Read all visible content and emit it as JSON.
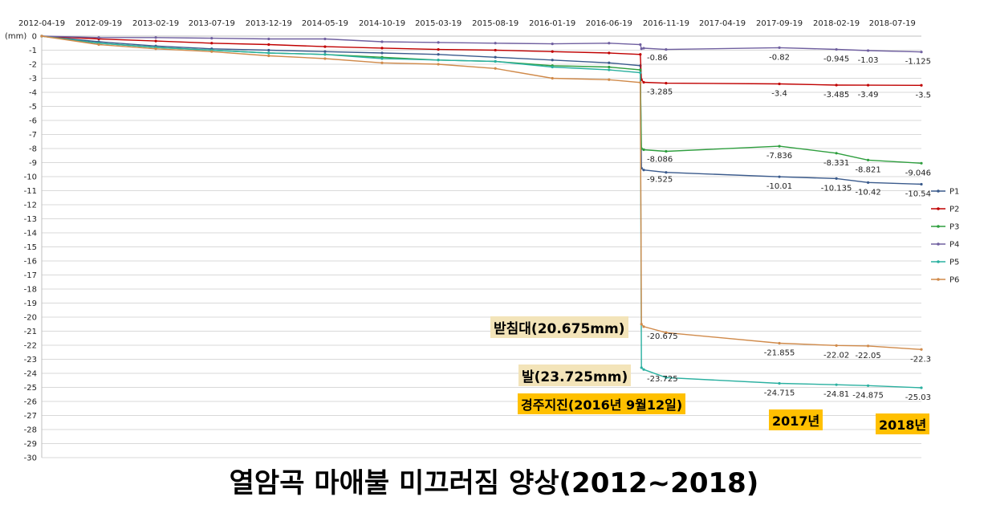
{
  "chart_data": {
    "type": "line",
    "title": "열암곡 마애불 미끄러짐 양상(2012~2018)",
    "ylabel": "(mm)",
    "ylim": [
      -30,
      0
    ],
    "yticks": [
      0,
      -1,
      -2,
      -3,
      -4,
      -5,
      -6,
      -7,
      -8,
      -9,
      -10,
      -11,
      -12,
      -13,
      -14,
      -15,
      -16,
      -17,
      -18,
      -19,
      -20,
      -21,
      -22,
      -23,
      -24,
      -25,
      -26,
      -27,
      -28,
      -29,
      -30
    ],
    "xticks": [
      "2012-04-19",
      "2012-09-19",
      "2013-02-19",
      "2013-07-19",
      "2013-12-19",
      "2014-05-19",
      "2014-10-19",
      "2015-03-19",
      "2015-08-19",
      "2016-01-19",
      "2016-06-19",
      "2016-11-19",
      "2017-04-19",
      "2017-09-19",
      "2018-02-19",
      "2018-07-19"
    ],
    "xlim": [
      "2012-04-19",
      "2018-10-05"
    ],
    "legend_position": "right",
    "series": [
      {
        "name": "P1",
        "color": "#3a5a8c",
        "points": [
          [
            "2012-04-19",
            0
          ],
          [
            "2012-09-19",
            -0.4
          ],
          [
            "2013-02-19",
            -0.7
          ],
          [
            "2013-07-19",
            -0.9
          ],
          [
            "2013-12-19",
            -1.0
          ],
          [
            "2014-05-19",
            -1.1
          ],
          [
            "2014-10-19",
            -1.2
          ],
          [
            "2015-03-19",
            -1.3
          ],
          [
            "2015-08-19",
            -1.5
          ],
          [
            "2016-01-19",
            -1.7
          ],
          [
            "2016-06-19",
            -1.9
          ],
          [
            "2016-09-11",
            -2.1
          ],
          [
            "2016-09-14",
            -9.4
          ],
          [
            "2016-09-20",
            -9.525
          ],
          [
            "2016-11-19",
            -9.7
          ],
          [
            "2017-09-19",
            -10.01
          ],
          [
            "2018-02-19",
            -10.135
          ],
          [
            "2018-05-15",
            -10.42
          ],
          [
            "2018-10-05",
            -10.54
          ]
        ],
        "labels": [
          [
            "2016-09-20",
            -9.525,
            "-9.525"
          ],
          [
            "2017-09-19",
            -10.01,
            "-10.01"
          ],
          [
            "2018-02-19",
            -10.135,
            "-10.135"
          ],
          [
            "2018-05-15",
            -10.42,
            "-10.42"
          ],
          [
            "2018-10-05",
            -10.54,
            "-10.54"
          ]
        ]
      },
      {
        "name": "P2",
        "color": "#c00000",
        "points": [
          [
            "2012-04-19",
            0
          ],
          [
            "2012-09-19",
            -0.2
          ],
          [
            "2013-02-19",
            -0.35
          ],
          [
            "2013-07-19",
            -0.5
          ],
          [
            "2013-12-19",
            -0.6
          ],
          [
            "2014-05-19",
            -0.75
          ],
          [
            "2014-10-19",
            -0.85
          ],
          [
            "2015-03-19",
            -0.95
          ],
          [
            "2015-08-19",
            -1.0
          ],
          [
            "2016-01-19",
            -1.1
          ],
          [
            "2016-06-19",
            -1.2
          ],
          [
            "2016-09-11",
            -1.3
          ],
          [
            "2016-09-14",
            -3.1
          ],
          [
            "2016-09-20",
            -3.285
          ],
          [
            "2016-11-19",
            -3.35
          ],
          [
            "2017-09-19",
            -3.4
          ],
          [
            "2018-02-19",
            -3.485
          ],
          [
            "2018-05-15",
            -3.49
          ],
          [
            "2018-10-05",
            -3.5
          ]
        ],
        "labels": [
          [
            "2016-09-20",
            -3.285,
            "-3.285"
          ],
          [
            "2017-09-19",
            -3.4,
            "-3.4"
          ],
          [
            "2018-02-19",
            -3.485,
            "-3.485"
          ],
          [
            "2018-05-15",
            -3.49,
            "-3.49"
          ],
          [
            "2018-10-05",
            -3.5,
            "-3.5"
          ]
        ]
      },
      {
        "name": "P3",
        "color": "#2e9e3e",
        "points": [
          [
            "2012-04-19",
            0
          ],
          [
            "2012-09-19",
            -0.5
          ],
          [
            "2013-02-19",
            -0.8
          ],
          [
            "2013-07-19",
            -1.0
          ],
          [
            "2013-12-19",
            -1.2
          ],
          [
            "2014-05-19",
            -1.3
          ],
          [
            "2014-10-19",
            -1.5
          ],
          [
            "2015-03-19",
            -1.7
          ],
          [
            "2015-08-19",
            -1.8
          ],
          [
            "2016-01-19",
            -2.1
          ],
          [
            "2016-06-19",
            -2.2
          ],
          [
            "2016-09-11",
            -2.4
          ],
          [
            "2016-09-14",
            -8.0
          ],
          [
            "2016-09-20",
            -8.086
          ],
          [
            "2016-11-19",
            -8.2
          ],
          [
            "2017-09-19",
            -7.836
          ],
          [
            "2018-02-19",
            -8.331
          ],
          [
            "2018-05-15",
            -8.821
          ],
          [
            "2018-10-05",
            -9.046
          ]
        ],
        "labels": [
          [
            "2016-09-20",
            -8.086,
            "-8.086"
          ],
          [
            "2017-09-19",
            -7.836,
            "-7.836"
          ],
          [
            "2018-02-19",
            -8.331,
            "-8.331"
          ],
          [
            "2018-05-15",
            -8.821,
            "-8.821"
          ],
          [
            "2018-10-05",
            -9.046,
            "-9.046"
          ]
        ]
      },
      {
        "name": "P4",
        "color": "#7060a0",
        "points": [
          [
            "2012-04-19",
            0
          ],
          [
            "2012-09-19",
            -0.1
          ],
          [
            "2013-02-19",
            -0.1
          ],
          [
            "2013-07-19",
            -0.15
          ],
          [
            "2013-12-19",
            -0.2
          ],
          [
            "2014-05-19",
            -0.2
          ],
          [
            "2014-10-19",
            -0.4
          ],
          [
            "2015-03-19",
            -0.45
          ],
          [
            "2015-08-19",
            -0.5
          ],
          [
            "2016-01-19",
            -0.55
          ],
          [
            "2016-06-19",
            -0.5
          ],
          [
            "2016-09-11",
            -0.6
          ],
          [
            "2016-09-14",
            -0.9
          ],
          [
            "2016-09-20",
            -0.86
          ],
          [
            "2016-11-19",
            -0.95
          ],
          [
            "2017-09-19",
            -0.82
          ],
          [
            "2018-02-19",
            -0.945
          ],
          [
            "2018-05-15",
            -1.03
          ],
          [
            "2018-10-05",
            -1.125
          ]
        ],
        "labels": [
          [
            "2016-09-20",
            -0.86,
            "-0.86"
          ],
          [
            "2017-09-19",
            -0.82,
            "-0.82"
          ],
          [
            "2018-02-19",
            -0.945,
            "-0.945"
          ],
          [
            "2018-05-15",
            -1.03,
            "-1.03"
          ],
          [
            "2018-10-05",
            -1.125,
            "-1.125"
          ]
        ]
      },
      {
        "name": "P5",
        "color": "#2ab0a0",
        "points": [
          [
            "2012-04-19",
            0
          ],
          [
            "2012-09-19",
            -0.5
          ],
          [
            "2013-02-19",
            -0.8
          ],
          [
            "2013-07-19",
            -1.0
          ],
          [
            "2013-12-19",
            -1.2
          ],
          [
            "2014-05-19",
            -1.3
          ],
          [
            "2014-10-19",
            -1.6
          ],
          [
            "2015-03-19",
            -1.7
          ],
          [
            "2015-08-19",
            -1.8
          ],
          [
            "2016-01-19",
            -2.2
          ],
          [
            "2016-06-19",
            -2.4
          ],
          [
            "2016-09-11",
            -2.6
          ],
          [
            "2016-09-14",
            -23.6
          ],
          [
            "2016-09-20",
            -23.725
          ],
          [
            "2016-11-19",
            -24.3
          ],
          [
            "2017-09-19",
            -24.715
          ],
          [
            "2018-02-19",
            -24.81
          ],
          [
            "2018-05-15",
            -24.875
          ],
          [
            "2018-10-05",
            -25.03
          ]
        ],
        "labels": [
          [
            "2016-09-20",
            -23.725,
            "-23.725"
          ],
          [
            "2017-09-19",
            -24.715,
            "-24.715"
          ],
          [
            "2018-02-19",
            -24.81,
            "-24.81"
          ],
          [
            "2018-05-15",
            -24.875,
            "-24.875"
          ],
          [
            "2018-10-05",
            -25.03,
            "-25.03"
          ]
        ]
      },
      {
        "name": "P6",
        "color": "#d08a4a",
        "points": [
          [
            "2012-04-19",
            0
          ],
          [
            "2012-09-19",
            -0.6
          ],
          [
            "2013-02-19",
            -0.9
          ],
          [
            "2013-07-19",
            -1.1
          ],
          [
            "2013-12-19",
            -1.4
          ],
          [
            "2014-05-19",
            -1.6
          ],
          [
            "2014-10-19",
            -1.9
          ],
          [
            "2015-03-19",
            -2.0
          ],
          [
            "2015-08-19",
            -2.3
          ],
          [
            "2016-01-19",
            -3.0
          ],
          [
            "2016-06-19",
            -3.1
          ],
          [
            "2016-09-11",
            -3.3
          ],
          [
            "2016-09-14",
            -20.5
          ],
          [
            "2016-09-20",
            -20.675
          ],
          [
            "2016-11-19",
            -21.1
          ],
          [
            "2017-09-19",
            -21.855
          ],
          [
            "2018-02-19",
            -22.02
          ],
          [
            "2018-05-15",
            -22.05
          ],
          [
            "2018-10-05",
            -22.3
          ]
        ],
        "labels": [
          [
            "2016-09-20",
            -20.675,
            "-20.675"
          ],
          [
            "2017-09-19",
            -21.855,
            "-21.855"
          ],
          [
            "2018-02-19",
            -22.02,
            "-22.02"
          ],
          [
            "2018-05-15",
            -22.05,
            "-22.05"
          ],
          [
            "2018-10-05",
            -22.3,
            "-22.3"
          ]
        ]
      }
    ],
    "annotations": {
      "pedestal": "받침대(20.675mm)",
      "foot": "발(23.725mm)",
      "earthquake": "경주지진(2016년 9월12일)",
      "year_2017": "2017년",
      "year_2018": "2018년"
    }
  }
}
